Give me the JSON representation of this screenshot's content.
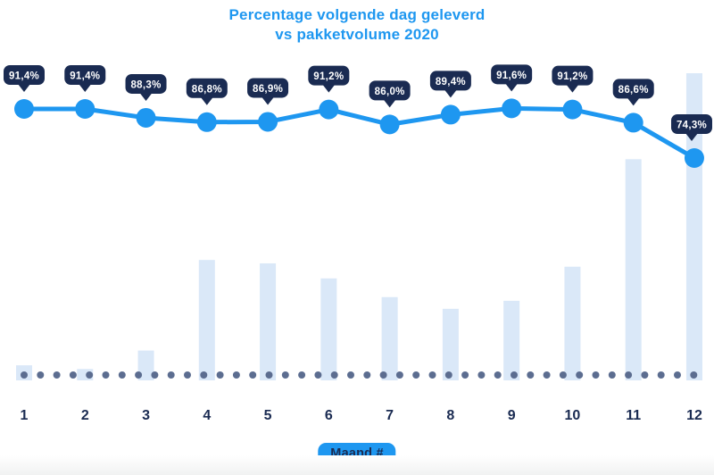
{
  "chart": {
    "title_line1": "Percentage volgende dag geleverd",
    "title_line2": "vs pakketvolume 2020",
    "xlabel": "Maand #"
  },
  "chart_data": {
    "type": "line",
    "subtype": "line-with-background-bars",
    "title": "Percentage volgende dag geleverd vs pakketvolume 2020",
    "xlabel": "Maand #",
    "ylabel": "",
    "categories": [
      "1",
      "2",
      "3",
      "4",
      "5",
      "6",
      "7",
      "8",
      "9",
      "10",
      "11",
      "12"
    ],
    "series": [
      {
        "name": "percentage volgende dag geleverd",
        "type": "line",
        "unit": "%",
        "values": [
          91.4,
          91.4,
          88.3,
          86.8,
          86.9,
          91.2,
          86.0,
          89.4,
          91.6,
          91.2,
          86.6,
          74.3
        ],
        "labels": [
          "91,4%",
          "91,4%",
          "88,3%",
          "86,8%",
          "86,9%",
          "91,2%",
          "86,0%",
          "89,4%",
          "91,6%",
          "91,2%",
          "86,6%",
          "74,3%"
        ]
      },
      {
        "name": "pakketvolume 2020",
        "type": "bar",
        "unit": "relative index (max month = 100, estimated from bar heights, no y-axis shown)",
        "values": [
          4.9,
          3.7,
          9.7,
          39.2,
          38.1,
          33.2,
          27.1,
          23.3,
          25.9,
          37.0,
          72.0,
          100.0
        ]
      }
    ],
    "layout": {
      "grid": false,
      "legend": "none",
      "value_labels": "navy speech-bubble badges above each line point",
      "baseline": "horizontal dotted line at x-axis",
      "x_axis_label_style": "blue rounded badge below month numbers"
    },
    "colors": {
      "accent_blue": "#1E97F0",
      "navy": "#1A2B52",
      "bar_fill": "#DAE8F8",
      "baseline_dot": "#5C6D90",
      "badge_text": "#FFFFFF",
      "background": "#FFFFFF"
    }
  }
}
